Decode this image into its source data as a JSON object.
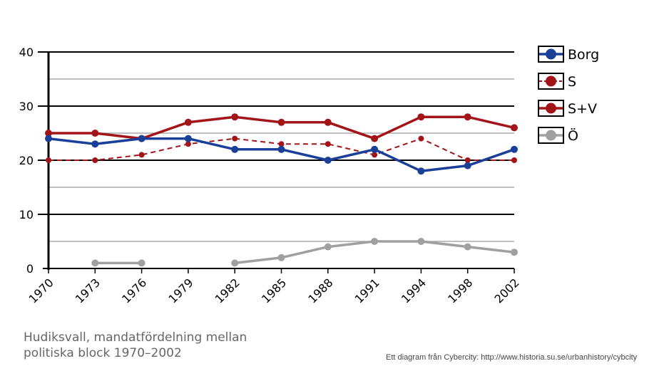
{
  "chart_data": {
    "type": "line",
    "x": [
      "1970",
      "1973",
      "1976",
      "1979",
      "1982",
      "1985",
      "1988",
      "1991",
      "1994",
      "1998",
      "2002"
    ],
    "ylim": [
      0,
      40
    ],
    "yticks": [
      "0",
      "10",
      "20",
      "30",
      "40"
    ],
    "grid": true,
    "legend_position": "right",
    "series": [
      {
        "name": "Borg",
        "color": "#1a3f99",
        "style": "solid",
        "values": [
          24,
          23,
          24,
          24,
          22,
          22,
          20,
          22,
          18,
          19,
          22
        ]
      },
      {
        "name": "S",
        "color": "#a31419",
        "style": "dashed",
        "values": [
          20,
          20,
          21,
          23,
          24,
          23,
          23,
          21,
          24,
          20,
          20
        ]
      },
      {
        "name": "S+V",
        "color": "#a31419",
        "style": "solid",
        "values": [
          25,
          25,
          24,
          27,
          28,
          27,
          27,
          24,
          28,
          28,
          26
        ]
      },
      {
        "name": "Ö",
        "color": "#a0a0a0",
        "style": "solid",
        "values": [
          null,
          1,
          1,
          null,
          1,
          2,
          4,
          5,
          5,
          4,
          3
        ]
      }
    ]
  },
  "caption": "Hudiksvall, mandatfördelning mellan politiska block 1970–2002",
  "credit": "Ett diagram från Cybercity: http://www.historia.su.se/urbanhistory/cybcity"
}
